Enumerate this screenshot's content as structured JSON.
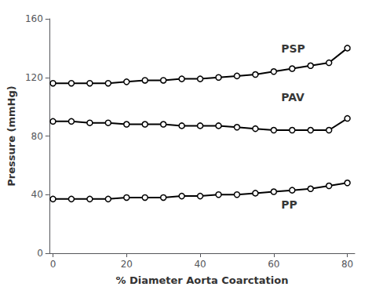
{
  "chart_data": {
    "type": "line",
    "x": [
      0,
      5,
      10,
      15,
      20,
      25,
      30,
      35,
      40,
      45,
      50,
      55,
      60,
      65,
      70,
      75,
      80
    ],
    "series": [
      {
        "name": "PSP",
        "color": "#000000",
        "marker": "circle",
        "values": [
          116,
          116,
          116,
          116,
          117,
          118,
          118,
          119,
          119,
          120,
          121,
          122,
          124,
          126,
          128,
          130,
          140
        ]
      },
      {
        "name": "PAV",
        "color": "#000000",
        "marker": "circle",
        "values": [
          90,
          90,
          89,
          89,
          88,
          88,
          88,
          87,
          87,
          87,
          86,
          85,
          84,
          84,
          84,
          84,
          92
        ]
      },
      {
        "name": "PP",
        "color": "#000000",
        "marker": "circle",
        "values": [
          37,
          37,
          37,
          37,
          38,
          38,
          38,
          39,
          39,
          40,
          40,
          41,
          42,
          43,
          44,
          46,
          48
        ]
      }
    ],
    "annotations": [
      {
        "text": "PSP",
        "x": 62,
        "y": 136
      },
      {
        "text": "PAV",
        "x": 62,
        "y": 103
      },
      {
        "text": "PP",
        "x": 62,
        "y": 37
      }
    ],
    "xlabel": "% Diameter Aorta Coarctation",
    "ylabel": "Pressure (mmHg)",
    "xlim": [
      -1,
      82
    ],
    "xticks": [
      0,
      20,
      40,
      60,
      80
    ],
    "ylim": [
      0,
      160
    ],
    "yticks": [
      0,
      40,
      80,
      120,
      160
    ],
    "grid": false
  }
}
